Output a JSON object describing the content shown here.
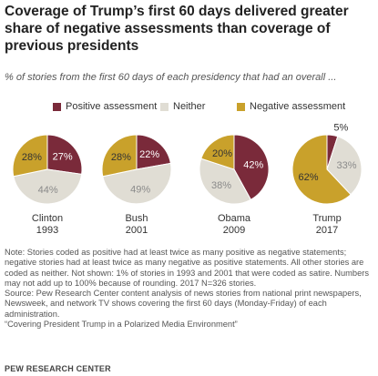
{
  "chart_data": {
    "type": "pie",
    "title": "Coverage of Trump’s first 60 days delivered greater share of negative assessments than coverage of previous presidents",
    "subtitle": "% of stories from the first 60 days of each presidency that had an overall ...",
    "legend": [
      {
        "name": "Positive assessment",
        "color": "#7a2a3a"
      },
      {
        "name": "Neither",
        "color": "#e0ddd4"
      },
      {
        "name": "Negative assessment",
        "color": "#c9a12b"
      }
    ],
    "pies": [
      {
        "name": "Clinton",
        "year": "1993",
        "positive": 27,
        "neither": 44,
        "negative": 28
      },
      {
        "name": "Bush",
        "year": "2001",
        "positive": 22,
        "neither": 49,
        "negative": 28
      },
      {
        "name": "Obama",
        "year": "2009",
        "positive": 42,
        "neither": 38,
        "negative": 20
      },
      {
        "name": "Trump",
        "year": "2017",
        "positive": 5,
        "neither": 33,
        "negative": 62
      }
    ]
  },
  "notes": {
    "note": "Note: Stories coded as positive had at least twice as many positive as negative statements; negative stories had at least twice as many negative as positive statements. All other stories are coded as neither. Not shown: 1% of stories in 1993 and 2001 that were coded as satire. Numbers may not add up to 100% because of rounding. 2017 N=326 stories.",
    "source": "Source: Pew Research Center content analysis of news stories from national print newspapers, Newsweek, and network TV shows covering the first 60 days (Monday-Friday) of each administration.",
    "report": "“Covering President Trump in a Polarized Media Environment”"
  },
  "source_org": "PEW RESEARCH CENTER"
}
